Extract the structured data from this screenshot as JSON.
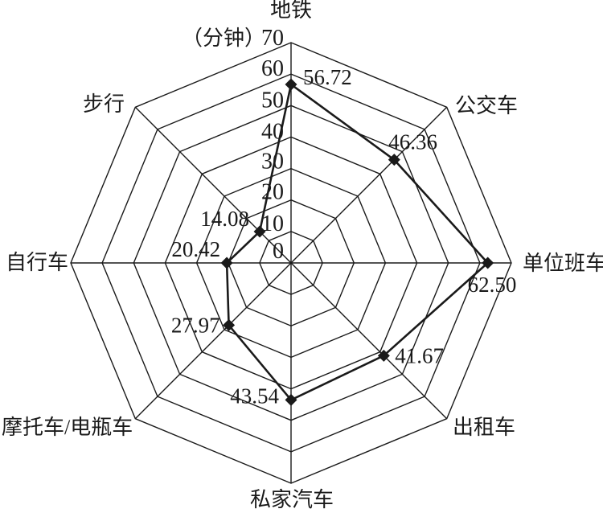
{
  "chart_data": {
    "type": "radar",
    "title": "",
    "unit_label": "（分钟）",
    "categories": [
      "地铁",
      "公交车",
      "单位班车",
      "出租车",
      "私家汽车",
      "摩托车/电瓶车",
      "自行车",
      "步行"
    ],
    "values": [
      56.72,
      46.36,
      62.5,
      41.67,
      43.54,
      27.97,
      20.42,
      14.08
    ],
    "value_labels": [
      "56.72",
      "46.36",
      "62.50",
      "41.67",
      "43.54",
      "27.97",
      "20.42",
      "14.08"
    ],
    "axis_ticks": [
      "0",
      "10",
      "20",
      "30",
      "40",
      "50",
      "60",
      "70"
    ],
    "axis_range": [
      0,
      70
    ],
    "grid": true,
    "grid_rings": 7,
    "legend": "none",
    "line_color": "#1a1a1a",
    "grid_color": "#1a1a1a",
    "background_color": "#ffffff",
    "marker": "diamond"
  }
}
